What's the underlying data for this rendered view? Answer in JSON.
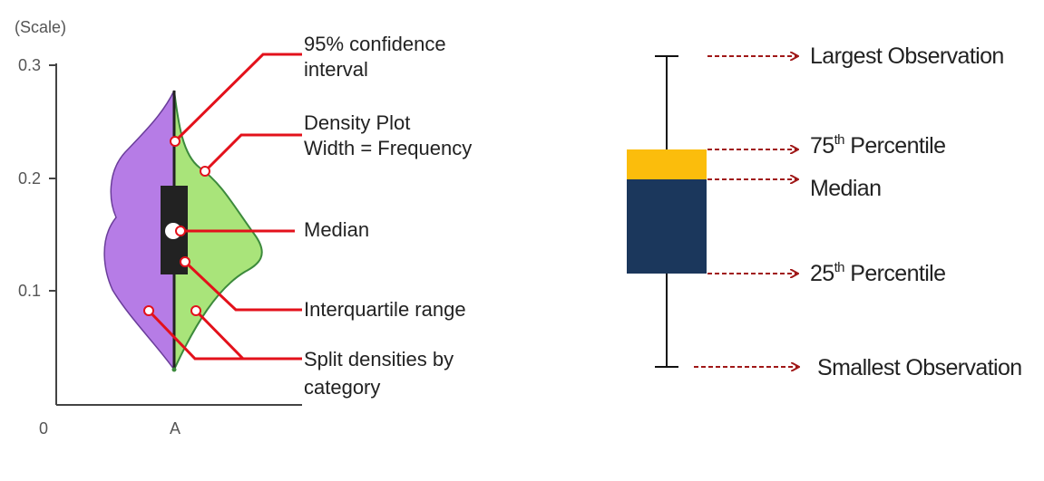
{
  "violin": {
    "scale_label": "(Scale)",
    "y_ticks": [
      "0.3",
      "0.2",
      "0.1"
    ],
    "x_origin_label": "0",
    "x_category_label": "A",
    "colors": {
      "left_density": "#b67ce6",
      "right_density": "#a9e47a",
      "callout": "#e3111b",
      "iqr_box": "#222222"
    },
    "callouts": {
      "confidence_interval": [
        "95% confidence",
        "interval"
      ],
      "density_plot": [
        "Density Plot",
        "Width = Frequency"
      ],
      "median": "Median",
      "interquartile_range": "Interquartile range",
      "split_densities": [
        "Split densities by",
        "category"
      ]
    }
  },
  "boxplot": {
    "colors": {
      "upper_box": "#fbbd0c",
      "lower_box": "#1b375c",
      "arrow": "#a01818"
    },
    "labels": {
      "largest": "Largest Observation",
      "p75_number": "75",
      "p75_suffix": "th",
      "p75_word": " Percentile",
      "median": "Median",
      "p25_number": "25",
      "p25_suffix": "th",
      "p25_word": " Percentile",
      "smallest": "Smallest Observation"
    }
  }
}
